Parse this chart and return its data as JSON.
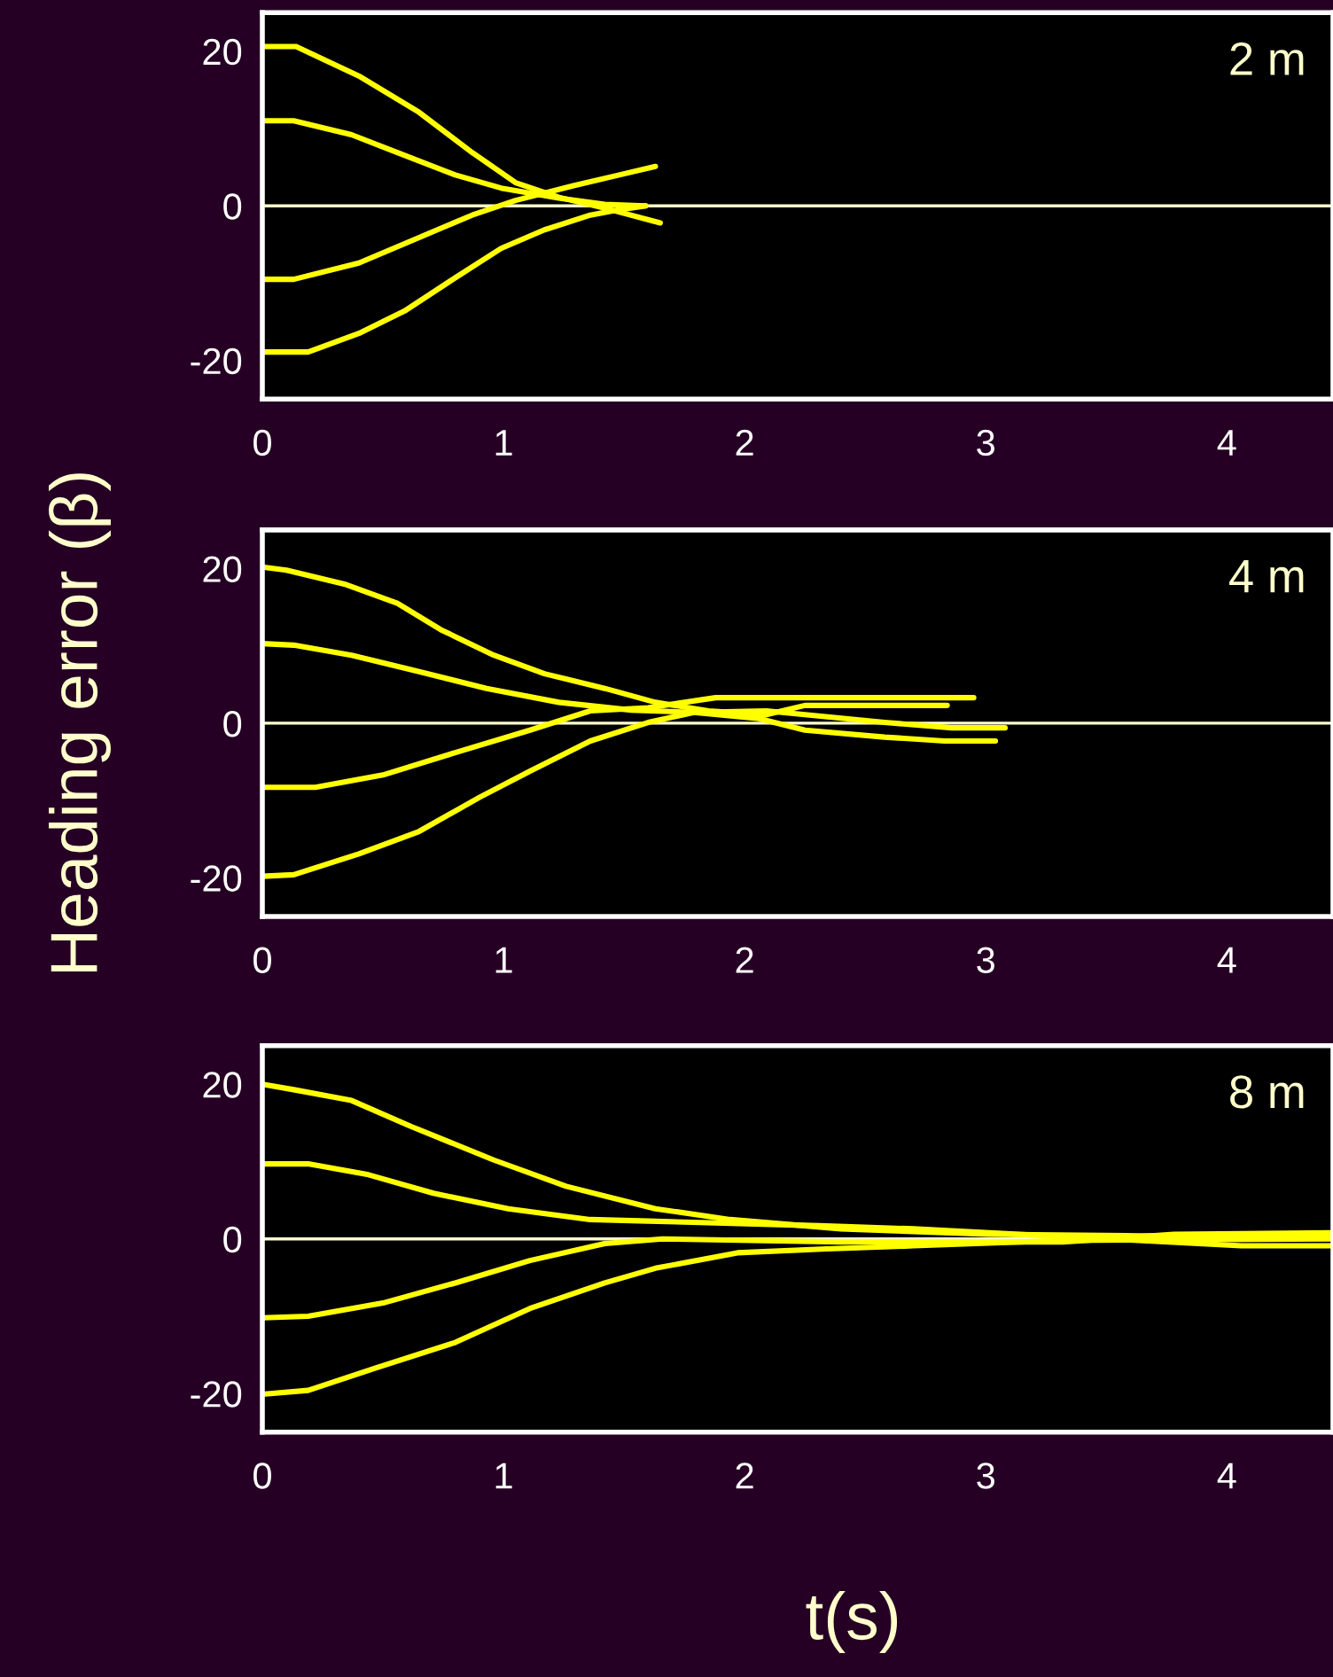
{
  "chart_data": [
    {
      "type": "line",
      "annotations": [
        "2 m"
      ],
      "xlim": [
        0,
        4.44
      ],
      "xticks": [
        0,
        1,
        2,
        3,
        4
      ],
      "ylim": [
        -25,
        25
      ],
      "yticks": [
        -20,
        0,
        20
      ],
      "ref_lines": [
        {
          "axis": "y",
          "value": 0,
          "color": "#ffffcc"
        }
      ],
      "series": [
        {
          "color": "#ffff00",
          "x": [
            0,
            0.14,
            0.4,
            0.65,
            0.87,
            1.05,
            1.23,
            1.42,
            1.65
          ],
          "values": [
            20.6,
            20.6,
            16.8,
            12.1,
            6.9,
            3,
            1.1,
            -0.3,
            -2.2
          ]
        },
        {
          "color": "#ffff00",
          "x": [
            0,
            0.13,
            0.37,
            0.56,
            0.8,
            0.99,
            1.23,
            1.42,
            1.59
          ],
          "values": [
            11,
            11,
            9.2,
            6.9,
            4,
            2.3,
            1,
            0.2,
            0
          ]
        },
        {
          "color": "#ffff00",
          "x": [
            0,
            0.13,
            0.4,
            0.65,
            0.87,
            1.05,
            1.29,
            1.48,
            1.63
          ],
          "values": [
            -9.5,
            -9.5,
            -7.4,
            -4.1,
            -1.2,
            0.7,
            2.6,
            4,
            5.1
          ]
        },
        {
          "color": "#ffff00",
          "x": [
            0,
            0.19,
            0.4,
            0.59,
            0.8,
            0.99,
            1.17,
            1.36,
            1.48,
            1.59
          ],
          "values": [
            -18.9,
            -18.9,
            -16.5,
            -13.6,
            -9.3,
            -5.5,
            -3.1,
            -1.2,
            -0.5,
            0
          ]
        }
      ]
    },
    {
      "type": "line",
      "ylabel": "Heading error (β)",
      "annotations": [
        "4 m"
      ],
      "xlim": [
        0,
        4.44
      ],
      "xticks": [
        0,
        1,
        2,
        3,
        4
      ],
      "ylim": [
        -25,
        25
      ],
      "yticks": [
        -20,
        0,
        20
      ],
      "ref_lines": [
        {
          "axis": "y",
          "value": 0,
          "color": "#ffffcc"
        }
      ],
      "series": [
        {
          "color": "#ffff00",
          "x": [
            0,
            0.1,
            0.34,
            0.56,
            0.74,
            0.96,
            1.17,
            1.42,
            1.63,
            1.85,
            2.09,
            2.25,
            2.84
          ],
          "values": [
            20.2,
            19.8,
            18,
            15.5,
            12.1,
            8.8,
            6.4,
            4.5,
            2.7,
            1.6,
            1.1,
            2.3,
            2.3
          ]
        },
        {
          "color": "#ffff00",
          "x": [
            0,
            0.13,
            0.37,
            0.62,
            0.93,
            1.23,
            1.53,
            1.79,
            2.06,
            2.25,
            2.58,
            2.83,
            3.04
          ],
          "values": [
            10.3,
            10.1,
            8.8,
            6.9,
            4.5,
            2.7,
            1.7,
            1.4,
            0.6,
            -0.9,
            -1.8,
            -2.3,
            -2.3
          ]
        },
        {
          "color": "#ffff00",
          "x": [
            0,
            0.22,
            0.5,
            0.8,
            1.11,
            1.36,
            1.6,
            1.88,
            2.28,
            2.95
          ],
          "values": [
            -8.3,
            -8.3,
            -6.7,
            -3.8,
            -0.9,
            1.6,
            2,
            3.3,
            3.3,
            3.3
          ]
        },
        {
          "color": "#ffff00",
          "x": [
            0,
            0.13,
            0.4,
            0.65,
            0.9,
            1.11,
            1.36,
            1.6,
            1.79,
            2.09,
            2.58,
            2.86,
            3.08
          ],
          "values": [
            -19.8,
            -19.6,
            -16.9,
            -14,
            -9.6,
            -6.2,
            -2.3,
            0.1,
            1.4,
            1.6,
            0.1,
            -0.6,
            -0.6
          ]
        }
      ]
    },
    {
      "type": "line",
      "xlabel": "t(s)",
      "annotations": [
        "8 m"
      ],
      "xlim": [
        0,
        4.44
      ],
      "xticks": [
        0,
        1,
        2,
        3,
        4
      ],
      "ylim": [
        -25,
        25
      ],
      "yticks": [
        -20,
        0,
        20
      ],
      "ref_lines": [
        {
          "axis": "y",
          "value": 0,
          "color": "#ffffcc"
        }
      ],
      "series": [
        {
          "color": "#ffff00",
          "x": [
            0,
            0.13,
            0.37,
            0.62,
            0.96,
            1.26,
            1.63,
            1.94,
            2.4,
            3.01,
            3.63,
            4.44
          ],
          "values": [
            20,
            19.3,
            17.9,
            14.5,
            10.2,
            6.8,
            3.9,
            2.5,
            1.3,
            0.6,
            0.4,
            0.4
          ]
        },
        {
          "color": "#ffff00",
          "x": [
            0,
            0.19,
            0.44,
            0.71,
            1.02,
            1.36,
            1.6,
            2.31,
            2.7,
            3.26,
            4.06,
            4.44
          ],
          "values": [
            9.7,
            9.7,
            8.3,
            5.9,
            3.9,
            2.5,
            2.3,
            1.7,
            1.3,
            0.4,
            -0.9,
            -0.9
          ]
        },
        {
          "color": "#ffff00",
          "x": [
            0,
            0.19,
            0.5,
            0.8,
            1.11,
            1.42,
            1.66,
            2.4,
            3.32,
            3.78,
            4.44
          ],
          "values": [
            -10.2,
            -10,
            -8.3,
            -5.7,
            -2.8,
            -0.6,
            0,
            -0.4,
            -0.4,
            0.6,
            0.8
          ]
        },
        {
          "color": "#ffff00",
          "x": [
            0,
            0.19,
            0.47,
            0.8,
            1.11,
            1.42,
            1.63,
            1.97,
            2.34,
            2.7,
            3.32,
            4.44
          ],
          "values": [
            -20.1,
            -19.6,
            -16.7,
            -13.4,
            -9,
            -5.7,
            -3.8,
            -1.8,
            -1.3,
            -0.9,
            -0.2,
            0
          ]
        }
      ]
    }
  ]
}
